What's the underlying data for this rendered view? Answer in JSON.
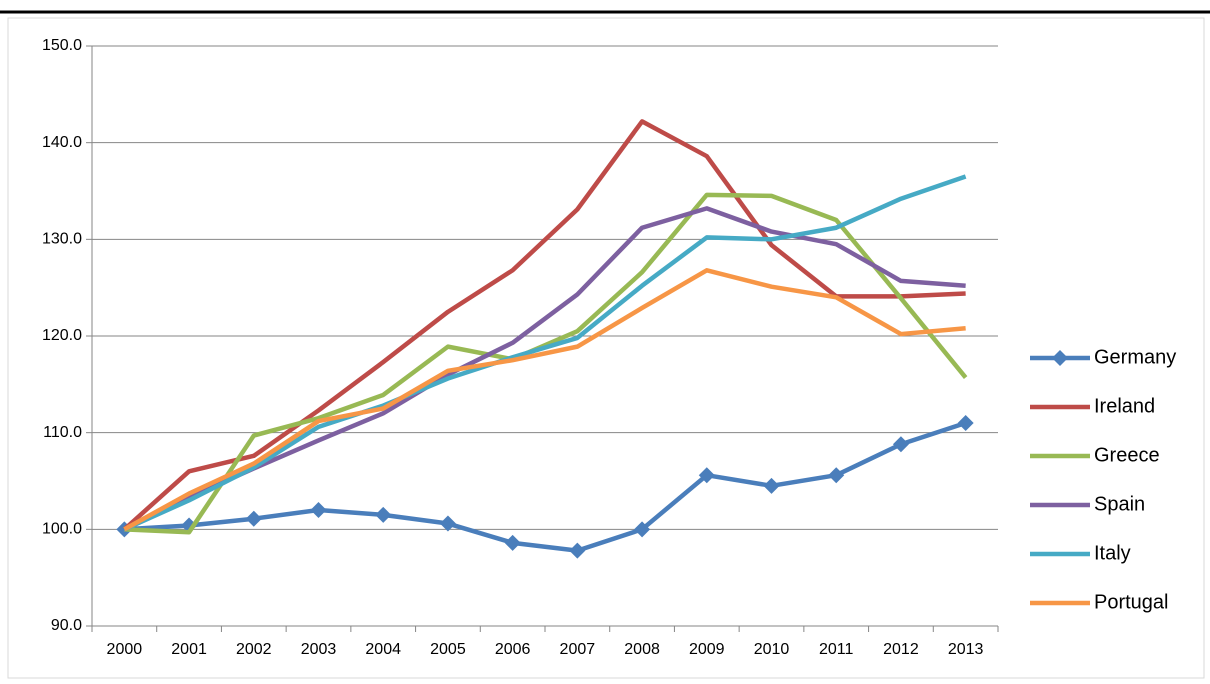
{
  "chart_data": {
    "type": "line",
    "categories": [
      "2000",
      "2001",
      "2002",
      "2003",
      "2004",
      "2005",
      "2006",
      "2007",
      "2008",
      "2009",
      "2010",
      "2011",
      "2012",
      "2013"
    ],
    "series": [
      {
        "name": "Germany",
        "color": "#4a7ebb",
        "marker": "diamond",
        "values": [
          100,
          100.4,
          101.1,
          102.0,
          101.5,
          100.6,
          98.6,
          97.8,
          100.0,
          105.6,
          104.5,
          105.6,
          108.8,
          111.0
        ]
      },
      {
        "name": "Ireland",
        "color": "#be4b48",
        "values": [
          100,
          106.0,
          107.6,
          112.3,
          117.3,
          122.5,
          126.8,
          133.1,
          142.2,
          138.6,
          129.4,
          124.1,
          124.1,
          124.4
        ]
      },
      {
        "name": "Greece",
        "color": "#98b954",
        "values": [
          100,
          99.7,
          109.7,
          111.5,
          113.9,
          118.9,
          117.6,
          120.5,
          126.6,
          134.6,
          134.5,
          132.0,
          123.9,
          115.7
        ]
      },
      {
        "name": "Spain",
        "color": "#7d60a0",
        "values": [
          100,
          103.3,
          106.3,
          109.2,
          112.0,
          116.0,
          119.3,
          124.3,
          131.2,
          133.2,
          130.8,
          129.5,
          125.7,
          125.2
        ]
      },
      {
        "name": "Italy",
        "color": "#46aac5",
        "values": [
          100,
          103.0,
          106.4,
          110.6,
          112.8,
          115.6,
          117.8,
          119.8,
          125.2,
          130.2,
          130.0,
          131.2,
          134.2,
          136.5
        ]
      },
      {
        "name": "Portugal",
        "color": "#f79646",
        "values": [
          100,
          103.7,
          106.8,
          111.2,
          112.5,
          116.4,
          117.5,
          118.9,
          122.9,
          126.8,
          125.1,
          124.0,
          120.2,
          120.8
        ]
      }
    ],
    "ylim": [
      90,
      150
    ],
    "yticks": [
      {
        "value": 90,
        "label": "90.0"
      },
      {
        "value": 100,
        "label": "100.0"
      },
      {
        "value": 110,
        "label": "110.0"
      },
      {
        "value": 120,
        "label": "120.0"
      },
      {
        "value": 130,
        "label": "130.0"
      },
      {
        "value": 140,
        "label": "140.0"
      },
      {
        "value": 150,
        "label": "150.0"
      }
    ],
    "grid": true,
    "legend": "right"
  }
}
